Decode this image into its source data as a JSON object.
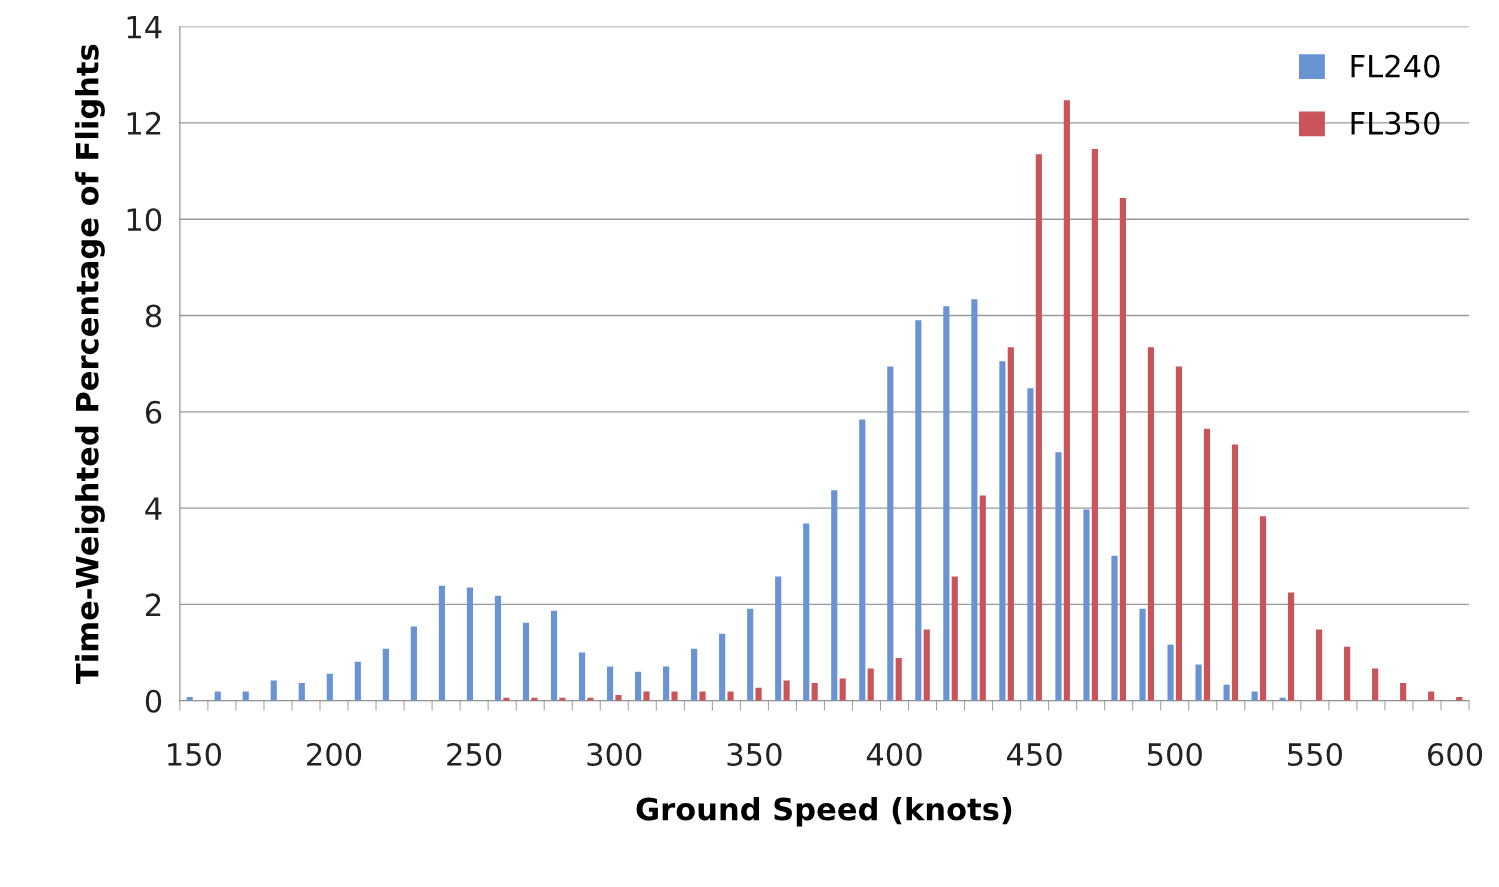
{
  "chart_data": {
    "type": "bar",
    "xlabel": "Ground Speed (knots)",
    "ylabel": "Time-Weighted Percentage of Flights",
    "categories": [
      "150",
      null,
      null,
      null,
      null,
      "200",
      null,
      null,
      null,
      null,
      "250",
      null,
      null,
      null,
      null,
      "300",
      null,
      null,
      null,
      null,
      "350",
      null,
      null,
      null,
      null,
      "400",
      null,
      null,
      null,
      null,
      "450",
      null,
      null,
      null,
      null,
      "500",
      null,
      null,
      null,
      null,
      "550",
      null,
      null,
      null,
      null,
      "600"
    ],
    "series": [
      {
        "name": "FL240",
        "color": "#6a93d4",
        "values": [
          0.08,
          0.19,
          0.19,
          0.42,
          0.37,
          0.56,
          0.81,
          1.08,
          1.54,
          2.39,
          2.35,
          2.18,
          1.62,
          1.87,
          1.0,
          0.71,
          0.6,
          0.71,
          1.08,
          1.39,
          1.91,
          2.58,
          3.68,
          4.37,
          5.84,
          6.94,
          7.9,
          8.19,
          8.34,
          7.05,
          6.49,
          5.16,
          3.97,
          3.01,
          1.91,
          1.16,
          0.75,
          0.33,
          0.19,
          0.06,
          0,
          0,
          0,
          0,
          0,
          0
        ]
      },
      {
        "name": "FL350",
        "color": "#c9555a",
        "values": [
          0,
          0,
          0,
          0,
          0,
          0,
          0,
          0,
          0,
          0,
          0,
          0.06,
          0.06,
          0.06,
          0.06,
          0.12,
          0.19,
          0.19,
          0.19,
          0.19,
          0.27,
          0.42,
          0.37,
          0.46,
          0.67,
          0.89,
          1.48,
          2.58,
          4.26,
          7.34,
          11.35,
          12.47,
          11.46,
          10.44,
          7.34,
          6.94,
          5.65,
          5.32,
          3.83,
          2.25,
          1.48,
          1.12,
          0.67,
          0.37,
          0.19,
          0.08
        ]
      }
    ],
    "ylim": [
      0,
      14
    ],
    "yticks": [
      0,
      2,
      4,
      6,
      8,
      10,
      12,
      14
    ],
    "grid": "y",
    "legend": "top right"
  }
}
